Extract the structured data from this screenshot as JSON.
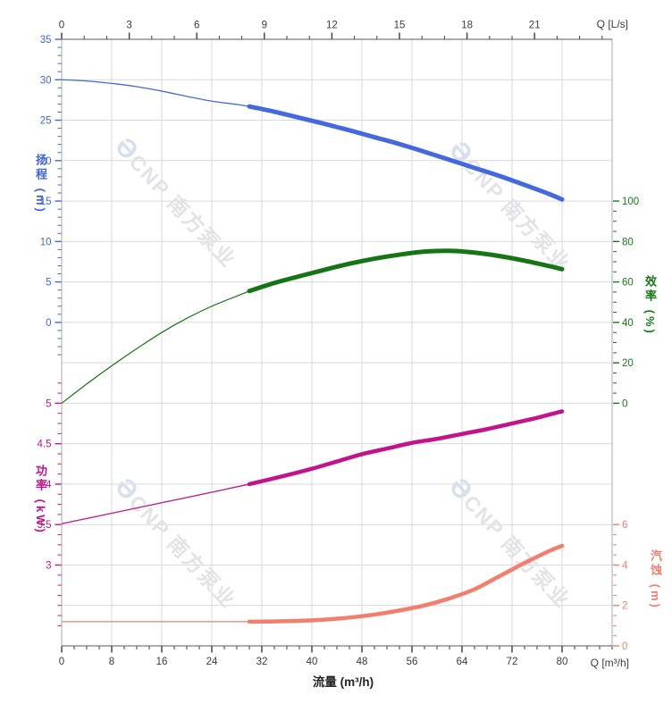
{
  "watermark": {
    "logo_glyph": "Ə",
    "brand_text": "CNP 南方泵业",
    "text_color": "#e2e3e7",
    "logo_color": "#d8dfee"
  },
  "labels": {
    "top_right_unit": "Q [L/s]",
    "bottom_right_unit": "Q [m³/h]",
    "flow_axis_title": "流量 (m³/h)",
    "head_axis_title": "扬程 (m)",
    "power_axis_title": "功率 (kW)",
    "efficiency_axis_title": "效率 (%)",
    "npsh_axis_title": "汽蚀 (m)"
  },
  "chart_data": {
    "type": "line",
    "title": "",
    "x_bottom": {
      "unit": "m³/h",
      "range": [
        0,
        88
      ],
      "major_ticks": [
        0,
        8,
        16,
        24,
        32,
        40,
        48,
        56,
        64,
        72,
        80
      ],
      "minor_step": 2,
      "color": "#3c3c3c"
    },
    "x_top": {
      "unit": "L/s",
      "m3h_per_Ls": 3.6,
      "range_Ls": [
        0,
        24
      ],
      "major_ticks": [
        0,
        3,
        6,
        9,
        12,
        15,
        18,
        21
      ],
      "minor_step": 1,
      "color": "#3c3c3c"
    },
    "y_axes": {
      "head": {
        "title": "扬程 (m)",
        "side": "left",
        "color": "#3f66e0",
        "max": 35,
        "row0": 0,
        "per_row": 5,
        "major_ticks": [
          35,
          30,
          25,
          20,
          15,
          10,
          5,
          0
        ],
        "minor_step": 1,
        "minor_range": [
          -4,
          35
        ]
      },
      "efficiency": {
        "title": "效率 (%)",
        "side": "right",
        "color": "#157a15",
        "max": 100,
        "row0": 4,
        "per_row": 20,
        "major_ticks": [
          100,
          80,
          60,
          40,
          20,
          0
        ],
        "minor_step": 5,
        "minor_range": [
          0,
          100
        ]
      },
      "power": {
        "title": "功率 (kW)",
        "side": "left",
        "color": "#c2138b",
        "max": 5,
        "row0": 9,
        "per_row": 0.5,
        "major_ticks": [
          5,
          4.5,
          4,
          3.5,
          3
        ],
        "minor_step": 0.125,
        "minor_range": [
          2.25,
          5.25
        ]
      },
      "npsh": {
        "title": "汽蚀 (m)",
        "side": "right",
        "color": "#f37e6d",
        "max": 6,
        "row0": 12,
        "per_row": 2,
        "major_ticks": [
          6,
          4,
          2,
          0
        ],
        "minor_step": 0.5,
        "minor_range": [
          0,
          6
        ]
      }
    },
    "grid": {
      "color": "#d9d9d9",
      "border_color": "#a9a9a9",
      "edge_color": "#5a5a5a",
      "h_rows": 15,
      "v_step_m3h": 8
    },
    "series": [
      {
        "name": "head",
        "axis": "head",
        "color": "#4468e0",
        "bold_from_q": 30,
        "thin_width": 1.3,
        "thick_width": 5,
        "points": [
          [
            0,
            30
          ],
          [
            4,
            29.85
          ],
          [
            8,
            29.55
          ],
          [
            12,
            29.15
          ],
          [
            16,
            28.6
          ],
          [
            20,
            27.95
          ],
          [
            24,
            27.35
          ],
          [
            28,
            26.95
          ],
          [
            30,
            26.7
          ],
          [
            34,
            26.05
          ],
          [
            38,
            25.3
          ],
          [
            42,
            24.55
          ],
          [
            46,
            23.75
          ],
          [
            50,
            22.9
          ],
          [
            54,
            22.05
          ],
          [
            58,
            21.1
          ],
          [
            62,
            20.1
          ],
          [
            66,
            19.1
          ],
          [
            70,
            18.1
          ],
          [
            74,
            17.0
          ],
          [
            78,
            15.85
          ],
          [
            80,
            15.2
          ]
        ]
      },
      {
        "name": "efficiency",
        "axis": "efficiency",
        "color": "#157515",
        "bold_from_q": 30,
        "thin_width": 1.2,
        "thick_width": 5,
        "points": [
          [
            0,
            0
          ],
          [
            4,
            9.5
          ],
          [
            8,
            18.5
          ],
          [
            12,
            27
          ],
          [
            16,
            35
          ],
          [
            20,
            42
          ],
          [
            24,
            48
          ],
          [
            28,
            53
          ],
          [
            30,
            55.5
          ],
          [
            34,
            59.5
          ],
          [
            38,
            62.8
          ],
          [
            42,
            66
          ],
          [
            46,
            69
          ],
          [
            50,
            71.5
          ],
          [
            54,
            73.5
          ],
          [
            58,
            75
          ],
          [
            62,
            75.4
          ],
          [
            66,
            74.5
          ],
          [
            70,
            72.8
          ],
          [
            74,
            70.5
          ],
          [
            78,
            67.8
          ],
          [
            80,
            66.3
          ]
        ]
      },
      {
        "name": "power",
        "axis": "power",
        "color": "#c2138b",
        "bold_from_q": 30,
        "thin_width": 1.3,
        "thick_width": 4.5,
        "points": [
          [
            0,
            3.51
          ],
          [
            8,
            3.64
          ],
          [
            16,
            3.77
          ],
          [
            24,
            3.9
          ],
          [
            30,
            4.0
          ],
          [
            36,
            4.11
          ],
          [
            40,
            4.19
          ],
          [
            44,
            4.28
          ],
          [
            48,
            4.37
          ],
          [
            52,
            4.44
          ],
          [
            56,
            4.51
          ],
          [
            60,
            4.56
          ],
          [
            64,
            4.62
          ],
          [
            68,
            4.68
          ],
          [
            72,
            4.75
          ],
          [
            76,
            4.82
          ],
          [
            80,
            4.9
          ]
        ]
      },
      {
        "name": "npsh",
        "axis": "npsh",
        "color": "#f37e6d",
        "bold_from_q": 30,
        "thin_width": 1.3,
        "thick_width": 4.5,
        "points": [
          [
            0,
            1.2
          ],
          [
            8,
            1.2
          ],
          [
            16,
            1.2
          ],
          [
            24,
            1.2
          ],
          [
            30,
            1.2
          ],
          [
            34,
            1.21
          ],
          [
            38,
            1.24
          ],
          [
            42,
            1.3
          ],
          [
            46,
            1.4
          ],
          [
            50,
            1.55
          ],
          [
            54,
            1.75
          ],
          [
            58,
            2.0
          ],
          [
            62,
            2.35
          ],
          [
            66,
            2.8
          ],
          [
            70,
            3.45
          ],
          [
            74,
            4.1
          ],
          [
            78,
            4.7
          ],
          [
            80,
            4.95
          ]
        ]
      }
    ]
  }
}
